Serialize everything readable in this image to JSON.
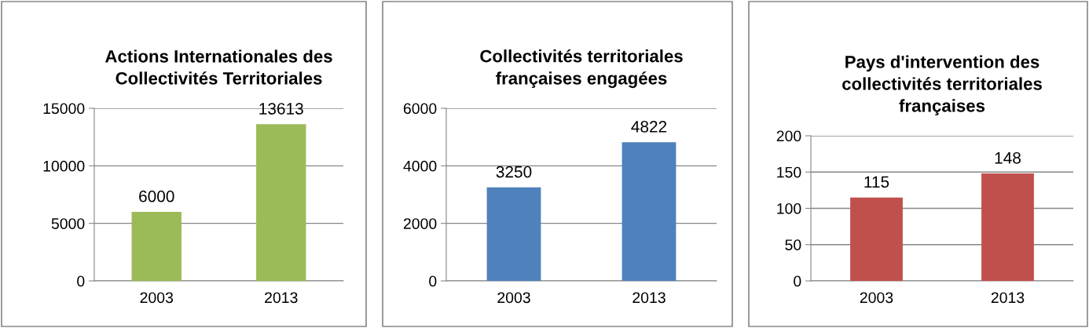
{
  "chart_data": [
    {
      "type": "bar",
      "title": "Actions Internationales des\nCollectivités Territoriales",
      "categories": [
        "2003",
        "2013"
      ],
      "values": [
        6000,
        13613
      ],
      "color": "#9bbb59",
      "ylim": [
        0,
        15000
      ],
      "yticks": [
        0,
        5000,
        10000,
        15000
      ],
      "grid": "y",
      "data_labels": true
    },
    {
      "type": "bar",
      "title": "Collectivités territoriales\nfrançaises engagées",
      "categories": [
        "2003",
        "2013"
      ],
      "values": [
        3250,
        4822
      ],
      "color": "#4f81bd",
      "ylim": [
        0,
        6000
      ],
      "yticks": [
        0,
        2000,
        4000,
        6000
      ],
      "grid": "y",
      "data_labels": true
    },
    {
      "type": "bar",
      "title": "Pays d'intervention des\ncollectivités territoriales\nfrançaises",
      "categories": [
        "2003",
        "2013"
      ],
      "values": [
        115,
        148
      ],
      "color": "#c0504d",
      "ylim": [
        0,
        200
      ],
      "yticks": [
        0,
        50,
        100,
        150,
        200
      ],
      "grid": "y",
      "data_labels": true
    }
  ]
}
